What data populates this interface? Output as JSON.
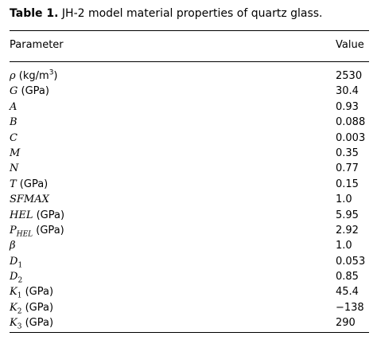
{
  "caption": {
    "label": "Table 1.",
    "text": "JH-2 model material properties of quartz glass."
  },
  "header": {
    "parameter": "Parameter",
    "value": "Value"
  },
  "rows": [
    {
      "symbol": "ρ",
      "sub": "",
      "unit": " (kg/m",
      "sup": "3",
      "unit_end": ")",
      "value": "2530"
    },
    {
      "symbol": "G",
      "sub": "",
      "unit": " (GPa)",
      "sup": "",
      "unit_end": "",
      "value": "30.4"
    },
    {
      "symbol": "A",
      "sub": "",
      "unit": "",
      "sup": "",
      "unit_end": "",
      "value": "0.93"
    },
    {
      "symbol": "B",
      "sub": "",
      "unit": "",
      "sup": "",
      "unit_end": "",
      "value": "0.088"
    },
    {
      "symbol": "C",
      "sub": "",
      "unit": "",
      "sup": "",
      "unit_end": "",
      "value": "0.003"
    },
    {
      "symbol": "M",
      "sub": "",
      "unit": "",
      "sup": "",
      "unit_end": "",
      "value": "0.35"
    },
    {
      "symbol": "N",
      "sub": "",
      "unit": "",
      "sup": "",
      "unit_end": "",
      "value": "0.77"
    },
    {
      "symbol": "T",
      "sub": "",
      "unit": " (GPa)",
      "sup": "",
      "unit_end": "",
      "value": "0.15"
    },
    {
      "symbol": "SFMAX",
      "sub": "",
      "unit": "",
      "sup": "",
      "unit_end": "",
      "value": "1.0"
    },
    {
      "symbol": "HEL",
      "sub": "",
      "unit": " (GPa)",
      "sup": "",
      "unit_end": "",
      "value": "5.95"
    },
    {
      "symbol": "P",
      "sub": "HEL",
      "unit": " (GPa)",
      "sup": "",
      "unit_end": "",
      "value": "2.92"
    },
    {
      "symbol": "β",
      "sub": "",
      "unit": "",
      "sup": "",
      "unit_end": "",
      "value": "1.0"
    },
    {
      "symbol": "D",
      "sub": "1",
      "unit": "",
      "sup": "",
      "unit_end": "",
      "value": "0.053"
    },
    {
      "symbol": "D",
      "sub": "2",
      "unit": "",
      "sup": "",
      "unit_end": "",
      "value": "0.85"
    },
    {
      "symbol": "K",
      "sub": "1",
      "unit": " (GPa)",
      "sup": "",
      "unit_end": "",
      "value": "45.4"
    },
    {
      "symbol": "K",
      "sub": "2",
      "unit": " (GPa)",
      "sup": "",
      "unit_end": "",
      "value": "−138"
    },
    {
      "symbol": "K",
      "sub": "3",
      "unit": " (GPa)",
      "sup": "",
      "unit_end": "",
      "value": "290"
    }
  ]
}
